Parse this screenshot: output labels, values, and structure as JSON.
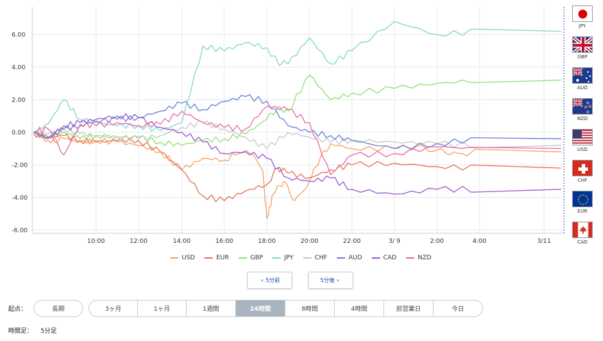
{
  "chart_data": {
    "type": "line",
    "x_labels": [
      "10:00",
      "12:00",
      "14:00",
      "16:00",
      "18:00",
      "20:00",
      "22:00",
      "3/ 9",
      "2:00",
      "4:00",
      "3/11"
    ],
    "y_ticks": [
      "6.00",
      "4.00",
      "2.00",
      "0.00",
      "-2.00",
      "-4.00",
      "-6.00"
    ],
    "ylim": [
      -6.2,
      7.7
    ],
    "grid": true,
    "legend_position": "bottom",
    "series": [
      {
        "name": "USD",
        "color": "#f4a261",
        "points": [
          [
            0,
            0
          ],
          [
            1,
            -0.5
          ],
          [
            2,
            -0.4
          ],
          [
            3,
            -0.6
          ],
          [
            4,
            -0.5
          ],
          [
            5,
            -0.6
          ],
          [
            6,
            -0.8
          ],
          [
            7,
            -1.2
          ],
          [
            8,
            -2.3
          ],
          [
            9,
            -1.6
          ],
          [
            10,
            -1.7
          ],
          [
            10.5,
            -1.4
          ],
          [
            11.2,
            -1.3
          ],
          [
            11.8,
            -2.3
          ],
          [
            12,
            -5.3
          ],
          [
            12.3,
            -3.8
          ],
          [
            12.8,
            -3.0
          ],
          [
            13.3,
            -4.2
          ],
          [
            14,
            -3.0
          ],
          [
            14.5,
            -1.6
          ],
          [
            15,
            -0.7
          ],
          [
            16,
            -1.0
          ],
          [
            17,
            -1.0
          ],
          [
            17.5,
            -0.9
          ],
          [
            18,
            -1.1
          ],
          [
            18.5,
            -1.3
          ],
          [
            19,
            -1.2
          ]
        ]
      },
      {
        "name": "EUR",
        "color": "#e76f51",
        "points": [
          [
            0,
            -0.1
          ],
          [
            1,
            -0.3
          ],
          [
            2,
            -0.2
          ],
          [
            3,
            -0.5
          ],
          [
            4,
            -0.6
          ],
          [
            5,
            -0.5
          ],
          [
            6,
            -0.5
          ],
          [
            7,
            -1.2
          ],
          [
            8,
            -2.3
          ],
          [
            9,
            -3.9
          ],
          [
            10,
            -4.2
          ],
          [
            11,
            -3.6
          ],
          [
            12,
            -3.2
          ],
          [
            12.5,
            -2.2
          ],
          [
            13,
            -2.5
          ],
          [
            14,
            -2.8
          ],
          [
            15,
            -2.3
          ],
          [
            16,
            -2.0
          ],
          [
            17,
            -1.9
          ],
          [
            18,
            -2.1
          ],
          [
            19,
            -2.2
          ]
        ]
      },
      {
        "name": "GBP",
        "color": "#90e070",
        "points": [
          [
            0,
            0
          ],
          [
            1,
            -0.3
          ],
          [
            2,
            0
          ],
          [
            3,
            -0.4
          ],
          [
            4,
            -0.2
          ],
          [
            5,
            -0.3
          ],
          [
            6,
            -0.3
          ],
          [
            7,
            -0.6
          ],
          [
            8,
            -0.8
          ],
          [
            9,
            -0.5
          ],
          [
            10,
            -0.4
          ],
          [
            11,
            -0.1
          ],
          [
            12,
            0.8
          ],
          [
            12.5,
            1.5
          ],
          [
            13,
            1.3
          ],
          [
            14,
            3.5
          ],
          [
            15,
            2.0
          ],
          [
            16,
            2.4
          ],
          [
            17,
            2.7
          ],
          [
            18,
            3.0
          ],
          [
            19,
            3.2
          ]
        ]
      },
      {
        "name": "JPY",
        "color": "#80d8c8",
        "points": [
          [
            0,
            0
          ],
          [
            1,
            0.5
          ],
          [
            2,
            2.0
          ],
          [
            3,
            0.8
          ],
          [
            4,
            0.6
          ],
          [
            5,
            0.4
          ],
          [
            6,
            0.4
          ],
          [
            7,
            0.1
          ],
          [
            8,
            0.6
          ],
          [
            9,
            5.3
          ],
          [
            10,
            5.0
          ],
          [
            11,
            5.5
          ],
          [
            12,
            5.2
          ],
          [
            12.5,
            4.3
          ],
          [
            13,
            4.2
          ],
          [
            14,
            5.8
          ],
          [
            15,
            4.2
          ],
          [
            16,
            5.0
          ],
          [
            17,
            6.8
          ],
          [
            18,
            6.0
          ],
          [
            19,
            6.2
          ]
        ]
      },
      {
        "name": "CHF",
        "color": "#c8c8c8",
        "points": [
          [
            0,
            0
          ],
          [
            1,
            -0.1
          ],
          [
            2,
            0.2
          ],
          [
            3,
            -0.1
          ],
          [
            4,
            -0.2
          ],
          [
            5,
            -0.3
          ],
          [
            6,
            -0.4
          ],
          [
            7,
            -0.2
          ],
          [
            8,
            0.3
          ],
          [
            9,
            0.6
          ],
          [
            10,
            0.2
          ],
          [
            11,
            -0.3
          ],
          [
            12,
            -1.0
          ],
          [
            13,
            0.0
          ],
          [
            14,
            -0.3
          ],
          [
            15,
            -0.6
          ],
          [
            16,
            -0.5
          ],
          [
            17,
            -0.6
          ],
          [
            18,
            -0.7
          ],
          [
            19,
            -0.8
          ]
        ]
      },
      {
        "name": "AUD",
        "color": "#6b7fd7",
        "points": [
          [
            0,
            0
          ],
          [
            1,
            -0.3
          ],
          [
            2,
            0.2
          ],
          [
            3,
            0.4
          ],
          [
            4,
            0.7
          ],
          [
            5,
            0.8
          ],
          [
            6,
            0.9
          ],
          [
            7,
            1.3
          ],
          [
            8,
            1.8
          ],
          [
            9,
            1.4
          ],
          [
            10,
            1.9
          ],
          [
            11,
            2.2
          ],
          [
            12,
            1.9
          ],
          [
            13,
            0.4
          ],
          [
            14,
            0.0
          ],
          [
            15,
            -0.2
          ],
          [
            16,
            -0.5
          ],
          [
            17,
            -1.0
          ],
          [
            18,
            -0.7
          ],
          [
            19,
            -0.4
          ]
        ]
      },
      {
        "name": "CAD",
        "color": "#9b59d0",
        "points": [
          [
            0,
            0
          ],
          [
            1,
            -0.4
          ],
          [
            2,
            0.4
          ],
          [
            3,
            0.6
          ],
          [
            4,
            0.8
          ],
          [
            5,
            1.0
          ],
          [
            6,
            0.9
          ],
          [
            7,
            0.3
          ],
          [
            8,
            0.0
          ],
          [
            9,
            -0.6
          ],
          [
            10,
            -1.3
          ],
          [
            11,
            -1.2
          ],
          [
            12,
            -1.6
          ],
          [
            13,
            -2.8
          ],
          [
            14,
            -3.0
          ],
          [
            15,
            -2.8
          ],
          [
            16,
            -3.5
          ],
          [
            17,
            -3.8
          ],
          [
            18,
            -3.5
          ],
          [
            19,
            -3.5
          ]
        ]
      },
      {
        "name": "NZD",
        "color": "#e868a8",
        "points": [
          [
            0,
            0
          ],
          [
            1,
            0.2
          ],
          [
            2,
            -1.4
          ],
          [
            3,
            0.5
          ],
          [
            4,
            0.4
          ],
          [
            5,
            0.6
          ],
          [
            6,
            0.4
          ],
          [
            7,
            0.5
          ],
          [
            8,
            1.3
          ],
          [
            9,
            0.6
          ],
          [
            10,
            0.3
          ],
          [
            11,
            0.2
          ],
          [
            12,
            1.6
          ],
          [
            13,
            1.4
          ],
          [
            14,
            0.6
          ],
          [
            15,
            -2.6
          ],
          [
            16,
            -1.4
          ],
          [
            17,
            -1.3
          ],
          [
            18,
            -0.9
          ],
          [
            19,
            -1.0
          ]
        ]
      }
    ]
  },
  "flags": [
    {
      "code": "JPY"
    },
    {
      "code": "GBP"
    },
    {
      "code": "AUD"
    },
    {
      "code": "NZD"
    },
    {
      "code": "USD"
    },
    {
      "code": "CHF"
    },
    {
      "code": "EUR"
    },
    {
      "code": "CAD"
    }
  ],
  "legend": [
    {
      "name": "USD",
      "color": "#f4a261"
    },
    {
      "name": "EUR",
      "color": "#e76f51"
    },
    {
      "name": "GBP",
      "color": "#90e070"
    },
    {
      "name": "JPY",
      "color": "#80d8c8"
    },
    {
      "name": "CHF",
      "color": "#c8c8c8"
    },
    {
      "name": "AUD",
      "color": "#6b7fd7"
    },
    {
      "name": "CAD",
      "color": "#9b59d0"
    },
    {
      "name": "NZD",
      "color": "#e868a8"
    }
  ],
  "nav": {
    "prev_label": "5分前",
    "next_label": "5分後"
  },
  "period": {
    "label": "起点：",
    "options": [
      "長期",
      "3ヶ月",
      "1ヶ月",
      "1週間",
      "24時間",
      "8時間",
      "4時間",
      "前営業日",
      "今日"
    ],
    "active": "24時間"
  },
  "timeframe": {
    "label": "時間足：",
    "value": "5分足"
  }
}
